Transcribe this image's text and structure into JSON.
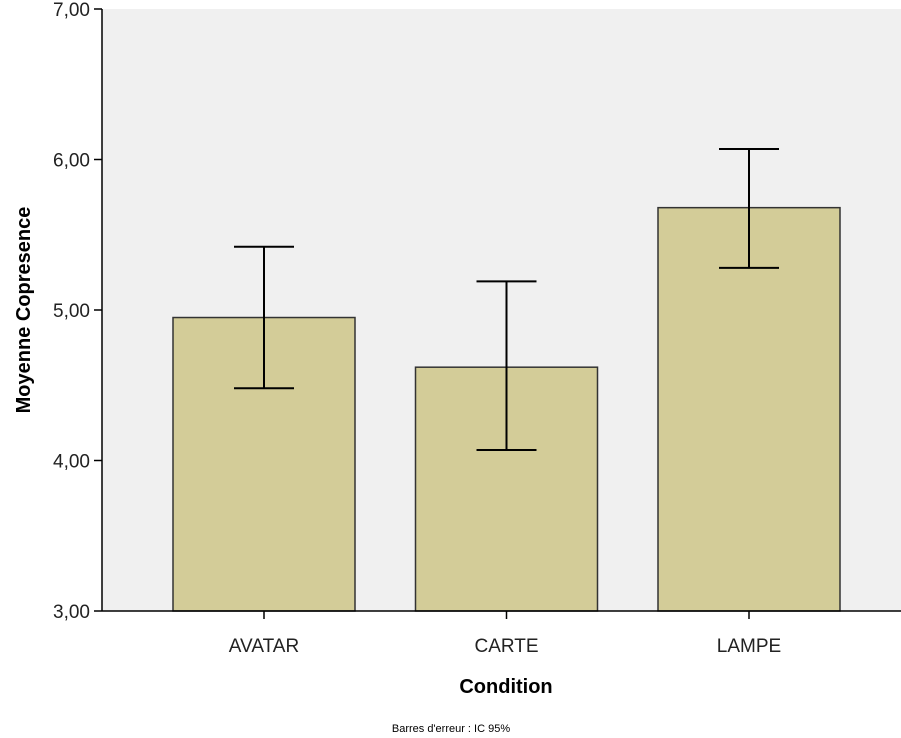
{
  "chart_data": {
    "type": "bar",
    "categories": [
      "AVATAR",
      "CARTE",
      "LAMPE"
    ],
    "values": [
      4.95,
      4.62,
      5.68
    ],
    "error_bars": {
      "lower": [
        4.48,
        4.07,
        5.28
      ],
      "upper": [
        5.42,
        5.19,
        6.07
      ]
    },
    "xlabel": "Condition",
    "ylabel": "Moyenne Copresence",
    "ylim": [
      3.0,
      7.0
    ],
    "yticks": [
      3.0,
      4.0,
      5.0,
      6.0,
      7.0
    ],
    "ytick_labels": [
      "3,00",
      "4,00",
      "5,00",
      "6,00",
      "7,00"
    ],
    "footnote": "Barres d'erreur : IC 95%",
    "grid": false,
    "legend": "none",
    "colors": {
      "bar_fill": "#d3cc98",
      "bar_stroke": "#333333",
      "plot_background": "#f0f0f0",
      "axis": "#000000",
      "error_bar": "#000000"
    }
  }
}
